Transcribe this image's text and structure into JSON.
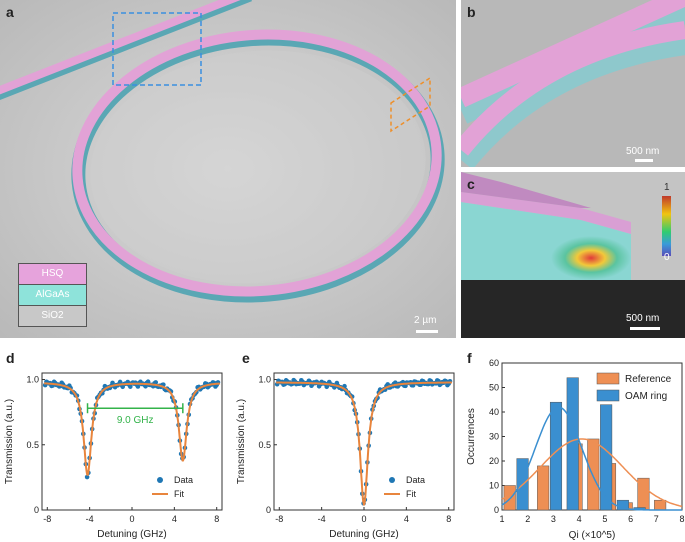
{
  "panels": {
    "a": {
      "letter": "a",
      "legend": [
        "HSQ",
        "AlGaAs",
        "SiO2"
      ],
      "scalebar": "2 µm"
    },
    "b": {
      "letter": "b",
      "scalebar": "500 nm"
    },
    "c": {
      "letter": "c",
      "scalebar": "500 nm",
      "colorbar_max": "1",
      "colorbar_min": "0"
    },
    "d": {
      "letter": "d"
    },
    "e": {
      "letter": "e"
    },
    "f": {
      "letter": "f"
    }
  },
  "colors": {
    "hsq": "#e6a3dc",
    "algaas": "#8ee3da",
    "sio2": "#c8c8c8",
    "data": "#1f77b4",
    "fit": "#e8853d",
    "spacing": "#33b34a",
    "reference": "#ee8f54",
    "oam": "#3a8fd0"
  },
  "chart_data": [
    {
      "type": "scatter",
      "panel": "d",
      "xlabel": "Detuning (GHz)",
      "ylabel": "Transmission (a.u.)",
      "xlim": [
        -8.5,
        8.5
      ],
      "ylim": [
        0,
        1.05
      ],
      "xticks": [
        -8,
        -4,
        0,
        4,
        8
      ],
      "yticks": [
        0,
        0.5,
        1.0
      ],
      "ytick_labels": [
        "0",
        "0.5",
        "1.0"
      ],
      "annotation": "9.0 GHz",
      "legend": [
        "Data",
        "Fit"
      ],
      "dips": [
        {
          "center": -4.2,
          "depth": 0.71,
          "width": 0.45
        },
        {
          "center": 4.8,
          "depth": 0.6,
          "width": 0.45
        }
      ],
      "baseline": 0.98
    },
    {
      "type": "scatter",
      "panel": "e",
      "xlabel": "Detuning (GHz)",
      "ylabel": "Transmission (a.u.)",
      "xlim": [
        -8.5,
        8.5
      ],
      "ylim": [
        0,
        1.05
      ],
      "xticks": [
        -8,
        -4,
        0,
        4,
        8
      ],
      "yticks": [
        0,
        0.5,
        1.0
      ],
      "ytick_labels": [
        "0",
        "0.5",
        "1.0"
      ],
      "legend": [
        "Data",
        "Fit"
      ],
      "dips": [
        {
          "center": 0.0,
          "depth": 0.94,
          "width": 0.45
        }
      ],
      "baseline": 0.98
    },
    {
      "type": "bar",
      "panel": "f",
      "xlabel": "Qi (×10^5)",
      "ylabel": "Occurrences",
      "xlim": [
        1,
        8
      ],
      "ylim": [
        0,
        60
      ],
      "xticks": [
        1,
        2,
        3,
        4,
        5,
        6,
        7,
        8
      ],
      "yticks": [
        0,
        10,
        20,
        30,
        40,
        50,
        60
      ],
      "bin_centers": [
        1.2,
        1.85,
        2.5,
        3.15,
        3.8,
        4.45,
        5.1,
        5.75,
        6.4,
        7.05
      ],
      "series": [
        {
          "name": "Reference",
          "values": [
            10,
            0,
            18,
            0,
            27,
            29,
            19,
            3,
            13,
            4
          ],
          "offset": 0.1
        },
        {
          "name": "OAM ring",
          "values": [
            0,
            21,
            0,
            44,
            54,
            0,
            43,
            4,
            1,
            0
          ],
          "offset": -0.05
        }
      ],
      "fits": [
        {
          "name": "Reference",
          "mean": 4.1,
          "sigma": 1.6,
          "peak": 29
        },
        {
          "name": "OAM ring",
          "mean": 3.2,
          "sigma": 0.9,
          "peak": 42
        }
      ]
    }
  ]
}
